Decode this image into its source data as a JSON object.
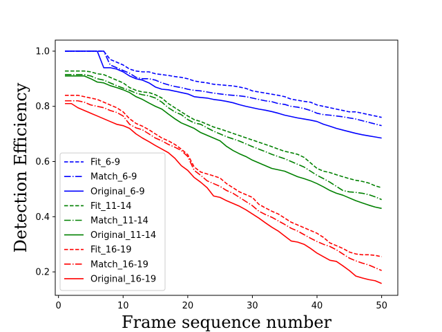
{
  "chart_data": {
    "type": "line",
    "title": "",
    "xlabel": "Frame sequence number",
    "ylabel": "Detection Efficiency",
    "xlim": [
      -0.5,
      52.5
    ],
    "ylim": [
      0.115,
      1.04
    ],
    "xticks": [
      0,
      10,
      20,
      30,
      40,
      50
    ],
    "yticks": [
      0.2,
      0.4,
      0.6,
      0.8,
      1.0
    ],
    "ytick_labels": [
      "0.2",
      "0.4",
      "0.6",
      "0.8",
      "1.0"
    ],
    "grid": false,
    "legend_position": "lower-left",
    "x": [
      1,
      2,
      3,
      4,
      5,
      6,
      7,
      8,
      9,
      10,
      11,
      12,
      13,
      14,
      15,
      16,
      17,
      18,
      19,
      20,
      21,
      22,
      23,
      24,
      25,
      26,
      27,
      28,
      29,
      30,
      31,
      32,
      33,
      34,
      35,
      36,
      37,
      38,
      39,
      40,
      41,
      42,
      43,
      44,
      45,
      46,
      47,
      48,
      49,
      50
    ],
    "series": [
      {
        "name": "Fit_6-9",
        "color": "#0000ff",
        "dash": "dashed",
        "values": [
          1.0,
          1.0,
          1.0,
          1.0,
          1.0,
          1.0,
          1.0,
          0.97,
          0.96,
          0.95,
          0.935,
          0.928,
          0.925,
          0.925,
          0.918,
          0.915,
          0.912,
          0.908,
          0.905,
          0.9,
          0.892,
          0.888,
          0.885,
          0.88,
          0.878,
          0.876,
          0.874,
          0.87,
          0.865,
          0.856,
          0.852,
          0.848,
          0.844,
          0.84,
          0.835,
          0.826,
          0.822,
          0.818,
          0.815,
          0.805,
          0.8,
          0.795,
          0.79,
          0.785,
          0.78,
          0.78,
          0.775,
          0.77,
          0.765,
          0.76
        ]
      },
      {
        "name": "Match_6-9",
        "color": "#0000ff",
        "dash": "dashdot",
        "values": [
          1.0,
          1.0,
          1.0,
          1.0,
          1.0,
          1.0,
          1.0,
          0.95,
          0.94,
          0.93,
          0.92,
          0.905,
          0.9,
          0.9,
          0.895,
          0.885,
          0.878,
          0.872,
          0.868,
          0.862,
          0.858,
          0.856,
          0.852,
          0.848,
          0.845,
          0.842,
          0.84,
          0.838,
          0.835,
          0.83,
          0.825,
          0.82,
          0.817,
          0.81,
          0.807,
          0.8,
          0.797,
          0.792,
          0.785,
          0.775,
          0.77,
          0.768,
          0.765,
          0.762,
          0.758,
          0.754,
          0.748,
          0.742,
          0.736,
          0.73
        ]
      },
      {
        "name": "Original_6-9",
        "color": "#0000ff",
        "dash": "solid",
        "values": [
          1.0,
          1.0,
          1.0,
          1.0,
          1.0,
          1.0,
          0.94,
          0.94,
          0.935,
          0.925,
          0.91,
          0.9,
          0.895,
          0.885,
          0.87,
          0.862,
          0.86,
          0.855,
          0.85,
          0.845,
          0.835,
          0.832,
          0.83,
          0.825,
          0.822,
          0.818,
          0.813,
          0.806,
          0.8,
          0.795,
          0.79,
          0.786,
          0.781,
          0.775,
          0.768,
          0.763,
          0.758,
          0.754,
          0.75,
          0.745,
          0.735,
          0.728,
          0.72,
          0.714,
          0.708,
          0.702,
          0.697,
          0.693,
          0.689,
          0.685
        ]
      },
      {
        "name": "Fit_11-14",
        "color": "#008000",
        "dash": "dashed",
        "values": [
          0.928,
          0.928,
          0.928,
          0.928,
          0.925,
          0.918,
          0.915,
          0.905,
          0.895,
          0.885,
          0.868,
          0.858,
          0.852,
          0.85,
          0.842,
          0.83,
          0.81,
          0.795,
          0.78,
          0.765,
          0.752,
          0.745,
          0.735,
          0.725,
          0.718,
          0.71,
          0.702,
          0.694,
          0.686,
          0.678,
          0.67,
          0.662,
          0.654,
          0.645,
          0.637,
          0.632,
          0.626,
          0.615,
          0.595,
          0.575,
          0.565,
          0.56,
          0.552,
          0.545,
          0.538,
          0.532,
          0.528,
          0.522,
          0.512,
          0.505
        ]
      },
      {
        "name": "Match_11-14",
        "color": "#008000",
        "dash": "dashdot",
        "values": [
          0.915,
          0.915,
          0.915,
          0.915,
          0.91,
          0.9,
          0.895,
          0.885,
          0.875,
          0.866,
          0.858,
          0.848,
          0.842,
          0.838,
          0.83,
          0.815,
          0.795,
          0.78,
          0.77,
          0.752,
          0.74,
          0.735,
          0.722,
          0.71,
          0.7,
          0.69,
          0.682,
          0.674,
          0.664,
          0.654,
          0.645,
          0.636,
          0.626,
          0.618,
          0.61,
          0.6,
          0.59,
          0.58,
          0.565,
          0.55,
          0.538,
          0.525,
          0.51,
          0.495,
          0.49,
          0.488,
          0.485,
          0.48,
          0.472,
          0.462
        ]
      },
      {
        "name": "Original_11-14",
        "color": "#008000",
        "dash": "solid",
        "values": [
          0.91,
          0.91,
          0.91,
          0.91,
          0.9,
          0.888,
          0.885,
          0.875,
          0.868,
          0.86,
          0.85,
          0.835,
          0.825,
          0.812,
          0.8,
          0.79,
          0.772,
          0.755,
          0.74,
          0.73,
          0.72,
          0.705,
          0.695,
          0.685,
          0.675,
          0.655,
          0.64,
          0.628,
          0.618,
          0.605,
          0.595,
          0.585,
          0.575,
          0.57,
          0.565,
          0.555,
          0.545,
          0.538,
          0.53,
          0.52,
          0.508,
          0.495,
          0.485,
          0.478,
          0.468,
          0.458,
          0.45,
          0.442,
          0.435,
          0.43
        ]
      },
      {
        "name": "Fit_16-19",
        "color": "#ff0000",
        "dash": "dashed",
        "values": [
          0.84,
          0.84,
          0.84,
          0.835,
          0.83,
          0.825,
          0.815,
          0.805,
          0.795,
          0.78,
          0.755,
          0.738,
          0.728,
          0.715,
          0.7,
          0.685,
          0.675,
          0.662,
          0.645,
          0.625,
          0.58,
          0.562,
          0.555,
          0.548,
          0.54,
          0.52,
          0.505,
          0.49,
          0.48,
          0.47,
          0.445,
          0.432,
          0.42,
          0.41,
          0.395,
          0.38,
          0.37,
          0.36,
          0.35,
          0.34,
          0.325,
          0.305,
          0.295,
          0.285,
          0.272,
          0.265,
          0.262,
          0.262,
          0.26,
          0.255
        ]
      },
      {
        "name": "Match_16-19",
        "color": "#ff0000",
        "dash": "dashdot",
        "values": [
          0.82,
          0.82,
          0.82,
          0.815,
          0.805,
          0.8,
          0.795,
          0.785,
          0.778,
          0.765,
          0.735,
          0.722,
          0.715,
          0.7,
          0.685,
          0.675,
          0.662,
          0.652,
          0.64,
          0.618,
          0.568,
          0.55,
          0.53,
          0.52,
          0.51,
          0.495,
          0.485,
          0.47,
          0.455,
          0.44,
          0.42,
          0.408,
          0.398,
          0.385,
          0.372,
          0.358,
          0.348,
          0.335,
          0.322,
          0.31,
          0.3,
          0.292,
          0.28,
          0.265,
          0.25,
          0.24,
          0.232,
          0.225,
          0.215,
          0.205
        ]
      },
      {
        "name": "Original_16-19",
        "color": "#ff0000",
        "dash": "solid",
        "values": [
          0.81,
          0.81,
          0.795,
          0.785,
          0.775,
          0.765,
          0.755,
          0.745,
          0.735,
          0.73,
          0.72,
          0.7,
          0.685,
          0.672,
          0.658,
          0.645,
          0.632,
          0.612,
          0.585,
          0.568,
          0.542,
          0.525,
          0.505,
          0.475,
          0.47,
          0.458,
          0.448,
          0.438,
          0.425,
          0.41,
          0.395,
          0.378,
          0.362,
          0.348,
          0.33,
          0.312,
          0.308,
          0.3,
          0.285,
          0.268,
          0.255,
          0.242,
          0.238,
          0.222,
          0.205,
          0.185,
          0.178,
          0.172,
          0.168,
          0.158
        ]
      }
    ]
  }
}
